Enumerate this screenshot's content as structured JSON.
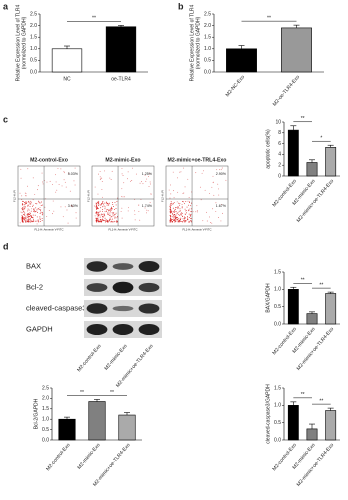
{
  "panel_labels": [
    "a",
    "b",
    "c",
    "d"
  ],
  "flow": {
    "titles": [
      "M2-control-Exo",
      "M2-mimic-Exo",
      "M2-mimic+oe-TRL4-Exo"
    ],
    "quadrants": [
      [
        "5.03%",
        "3.60%"
      ],
      [
        "1.25%",
        "1.74%"
      ],
      [
        "2.90%",
        "1.67%"
      ]
    ],
    "xlabel": "FL1-H::Annexin V-FITC",
    "ylabel": "FL2-H::PI"
  },
  "blot": {
    "proteins": [
      "BAX",
      "Bcl-2",
      "cleaved-caspase3",
      "GAPDH"
    ],
    "lanes": [
      "M2-control-Exo",
      "M2-mimic-Exo",
      "M2-mimic+oe-TLR4-Exo"
    ]
  },
  "chart_data": [
    {
      "type": "bar",
      "ylabel": [
        "Relative Expression Level of TLR4",
        "(normolized to GAPDH)"
      ],
      "categories": [
        "NC",
        "oe-TLR4"
      ],
      "values": [
        1.0,
        1.95
      ],
      "errors": [
        0.12,
        0.06
      ],
      "colors": [
        "#ffffff",
        "#000000"
      ],
      "ylim": [
        0,
        2.5
      ],
      "yticks": [
        {
          "value": 0,
          "label": "0.0"
        },
        0.5,
        {
          "value": 1,
          "label": "1.0"
        },
        1.5,
        {
          "value": 2,
          "label": "2.0"
        },
        2.5
      ],
      "annotations": [
        "**"
      ]
    },
    {
      "type": "bar",
      "ylabel": [
        "Relative Expression Level of TLR4",
        "(normolized to GAPDH)"
      ],
      "categories": [
        "M2-NC-Exo",
        "M2-oe-TLR4-Exo"
      ],
      "values": [
        1.0,
        1.9
      ],
      "errors": [
        0.14,
        0.12
      ],
      "colors": [
        "#000000",
        "#999999"
      ],
      "ylim": [
        0,
        2.5
      ],
      "yticks": [
        {
          "value": 0,
          "label": "0.0"
        },
        0.5,
        {
          "value": 1,
          "label": "1.0"
        },
        1.5,
        {
          "value": 2,
          "label": "2.0"
        },
        2.5
      ],
      "annotations": [
        "**"
      ]
    },
    {
      "type": "bar",
      "ylabel": [
        "apoptotic cells(%)"
      ],
      "categories": [
        "M2-control-Exo",
        "M2-mimic-Exo",
        "M2-mimic+oe-TLR4-Exo"
      ],
      "values": [
        8.5,
        2.5,
        5.3
      ],
      "errors": [
        0.8,
        0.5,
        0.4
      ],
      "colors": [
        "#000000",
        "#808080",
        "#aaaaaa"
      ],
      "ylim": [
        0,
        10
      ],
      "yticks": [
        0,
        2,
        4,
        6,
        8,
        10
      ],
      "annotations": [
        "**",
        "*"
      ]
    },
    {
      "type": "bar",
      "ylabel": [
        "BAX/GAPDH"
      ],
      "categories": [
        "M2-control-Exo",
        "M2-mimic-Exo",
        "M2-mimic+oe-TLR4-Exo"
      ],
      "values": [
        1.0,
        0.3,
        0.88
      ],
      "errors": [
        0.06,
        0.05,
        0.04
      ],
      "colors": [
        "#000000",
        "#808080",
        "#aaaaaa"
      ],
      "ylim": [
        0,
        1.5
      ],
      "yticks": [
        {
          "value": 0,
          "label": "0.0"
        },
        0.5,
        {
          "value": 1,
          "label": "1.0"
        },
        1.5
      ],
      "annotations": [
        "**",
        "**"
      ]
    },
    {
      "type": "bar",
      "ylabel": [
        "Bcl-2/GAPDH"
      ],
      "categories": [
        "M2-control-Exo",
        "M2-mimic-Exo",
        "M2-mimic+oe-TLR4-Exo"
      ],
      "values": [
        1.0,
        1.85,
        1.2
      ],
      "errors": [
        0.1,
        0.1,
        0.12
      ],
      "colors": [
        "#000000",
        "#808080",
        "#aaaaaa"
      ],
      "ylim": [
        0,
        2.5
      ],
      "yticks": [
        {
          "value": 0,
          "label": "0.0"
        },
        0.5,
        {
          "value": 1,
          "label": "1.0"
        },
        1.5,
        {
          "value": 2,
          "label": "2.0"
        },
        2.5
      ],
      "annotations": [
        "**",
        "**"
      ]
    },
    {
      "type": "bar",
      "ylabel": [
        "cleaved-caspase3/GAPDH"
      ],
      "categories": [
        "M2-control-Exo",
        "M2-mimic-Exo",
        "M2-mimic+oe-TLR4-Exo"
      ],
      "values": [
        1.0,
        0.32,
        0.85
      ],
      "errors": [
        0.1,
        0.14,
        0.07
      ],
      "colors": [
        "#000000",
        "#808080",
        "#aaaaaa"
      ],
      "ylim": [
        0,
        1.5
      ],
      "yticks": [
        {
          "value": 0,
          "label": "0.0"
        },
        0.5,
        {
          "value": 1,
          "label": "1.0"
        },
        1.5
      ],
      "annotations": [
        "**",
        "**"
      ]
    }
  ]
}
